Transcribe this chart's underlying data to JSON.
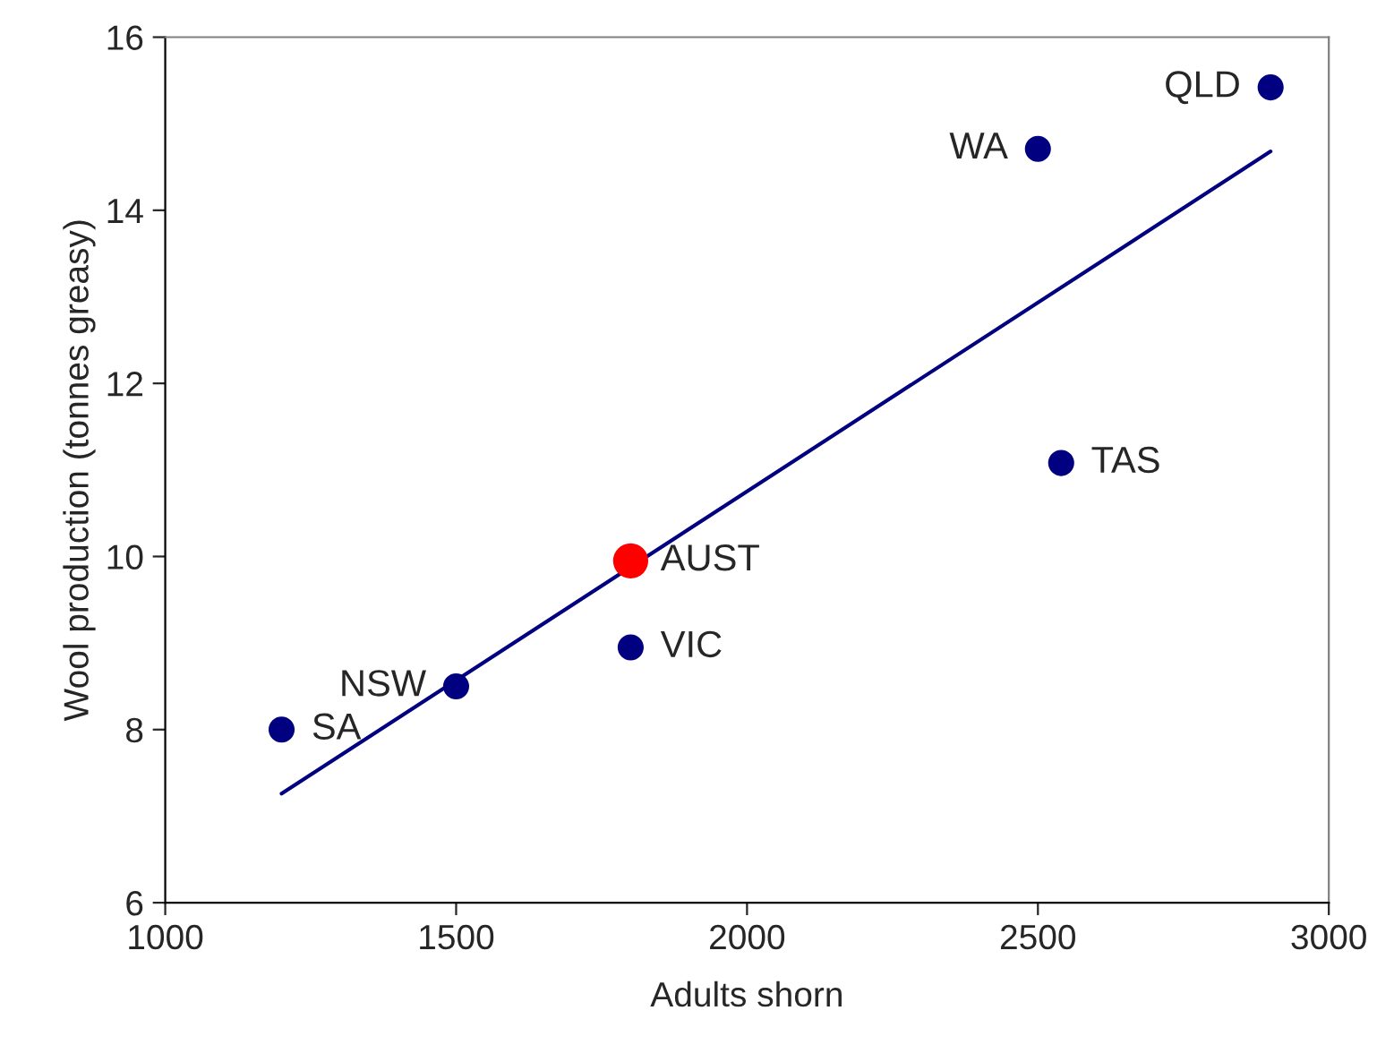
{
  "chart_data": {
    "type": "scatter",
    "xlabel": "Adults shorn",
    "ylabel": "Wool production (tonnes greasy)",
    "xlim": [
      1000,
      3000
    ],
    "xticks": [
      1000,
      1500,
      2000,
      2500,
      3000
    ],
    "ylim": [
      6,
      16
    ],
    "yticks": [
      6,
      8,
      10,
      12,
      14,
      16
    ],
    "grid": false,
    "legend": false,
    "series": [
      {
        "color": "#000080",
        "marker": "circle",
        "x": [
          1200,
          1500,
          1800,
          2540,
          2500,
          2900
        ],
        "values": [
          8.0,
          8.5,
          8.95,
          11.08,
          14.71,
          15.42
        ],
        "value_labels": [
          "SA",
          "NSW",
          "VIC",
          "TAS",
          "WA",
          "QLD"
        ]
      },
      {
        "color": "#ff0000",
        "marker": "circle",
        "x": [
          1800
        ],
        "values": [
          9.95
        ],
        "value_labels": [
          "AUST"
        ]
      },
      {
        "type": "line",
        "color": "#000080",
        "marker": "none",
        "x": [
          1200,
          2900
        ],
        "values": [
          7.26,
          14.68
        ]
      }
    ]
  }
}
